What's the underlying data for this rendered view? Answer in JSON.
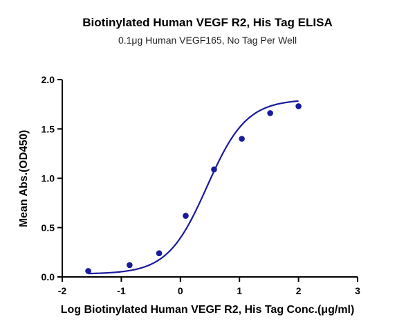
{
  "chart_data": {
    "type": "scatter",
    "title": "Biotinylated Human VEGF R2, His Tag ELISA",
    "subtitle": "0.1μg Human VEGF165, No Tag Per Well",
    "xlabel": "Log Biotinylated Human VEGF R2, His Tag Conc.(μg/ml)",
    "ylabel": "Mean Abs.(OD450)",
    "xlim": [
      -2,
      3
    ],
    "ylim": [
      0,
      2.0
    ],
    "xticks": [
      "-2",
      "-1",
      "0",
      "1",
      "2",
      "3"
    ],
    "yticks": [
      "0.0",
      "0.5",
      "1.0",
      "1.5",
      "2.0"
    ],
    "xtick_values": [
      -2,
      -1,
      0,
      1,
      2,
      3
    ],
    "ytick_values": [
      0,
      0.5,
      1.0,
      1.5,
      2.0
    ],
    "series": [
      {
        "x": [
          -1.56,
          -0.86,
          -0.36,
          0.09,
          0.57,
          1.04,
          1.52,
          2.0
        ],
        "y": [
          0.06,
          0.12,
          0.24,
          0.62,
          1.09,
          1.4,
          1.66,
          1.73
        ],
        "color": "#1a1a9c",
        "fit": {
          "bottom": 0.03,
          "top": 1.8,
          "log_ec50": 0.45,
          "hill": 1.3
        }
      }
    ],
    "grid": false,
    "legend": "none"
  }
}
